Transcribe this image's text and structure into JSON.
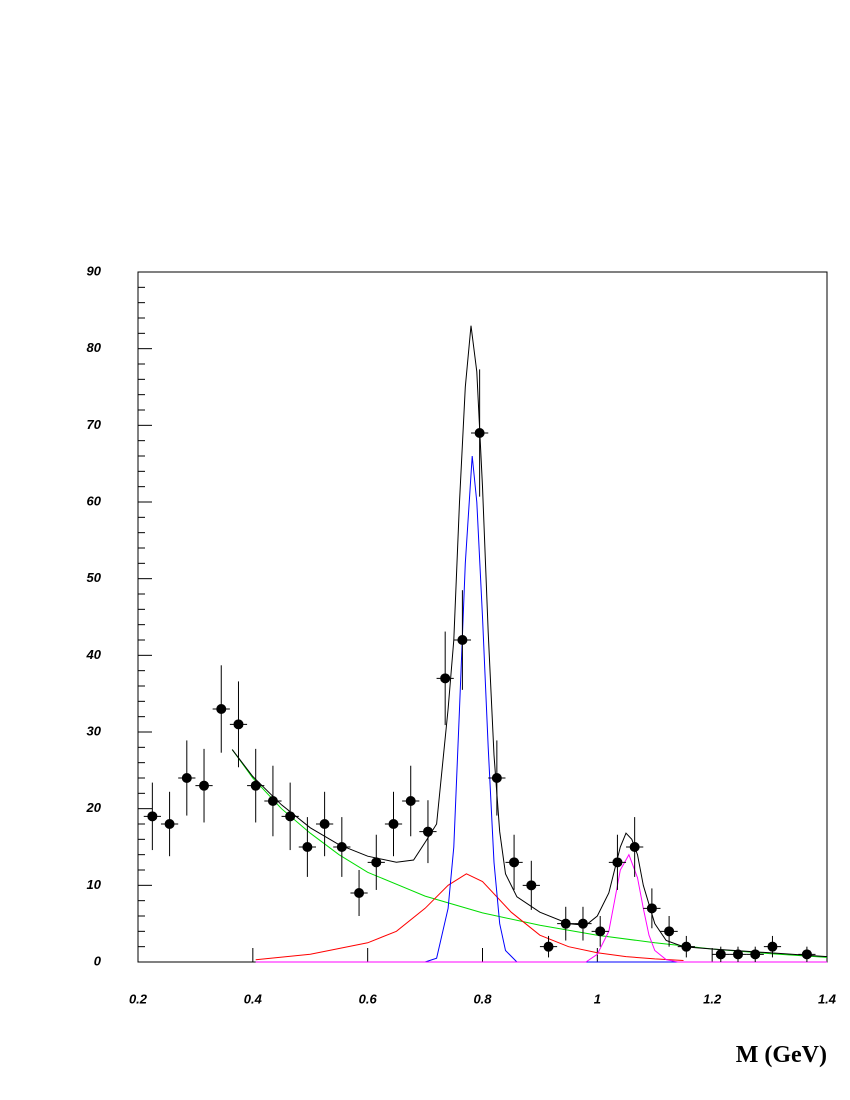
{
  "chart_data": {
    "type": "scatter",
    "x_label": "M (GeV)",
    "xlim": [
      0.2,
      1.4
    ],
    "xticks": [
      0.2,
      0.4,
      0.6,
      0.8,
      1,
      1.2,
      1.4
    ],
    "ylim": [
      0,
      90
    ],
    "yticks": [
      0,
      10,
      20,
      30,
      40,
      50,
      60,
      70,
      80,
      90
    ],
    "x_error": 0.015,
    "series": [
      {
        "color": "#000000",
        "x": [
          0.225,
          0.255,
          0.285,
          0.315,
          0.345,
          0.375,
          0.405,
          0.435,
          0.465,
          0.495,
          0.525,
          0.555,
          0.585,
          0.615,
          0.645,
          0.675,
          0.705,
          0.735,
          0.765,
          0.795,
          0.825,
          0.855,
          0.885,
          0.915,
          0.945,
          0.975,
          1.005,
          1.035,
          1.065,
          1.095,
          1.125,
          1.155,
          1.215,
          1.245,
          1.275,
          1.305,
          1.365
        ],
        "values": [
          19,
          18,
          24,
          23,
          33,
          31,
          23,
          21,
          19,
          15,
          18,
          15,
          9,
          13,
          18,
          21,
          17,
          37,
          42,
          69,
          24,
          13,
          10,
          2,
          5,
          5,
          4,
          13,
          15,
          7,
          4,
          2,
          1,
          1,
          1,
          2,
          1
        ],
        "errors": [
          4.4,
          4.2,
          4.9,
          4.8,
          5.7,
          5.6,
          4.8,
          4.6,
          4.4,
          3.9,
          4.2,
          3.9,
          3,
          3.6,
          4.2,
          4.6,
          4.1,
          6.1,
          6.5,
          8.3,
          4.9,
          3.6,
          3.2,
          1.4,
          2.2,
          2.2,
          2,
          3.6,
          3.9,
          2.6,
          2,
          1.4,
          1,
          1,
          1,
          1.4,
          1
        ]
      }
    ],
    "curves": [
      {
        "color": "#00dd00",
        "x": [
          0.364,
          0.4,
          0.45,
          0.5,
          0.55,
          0.6,
          0.7,
          0.8,
          0.9,
          1.0,
          1.1,
          1.2,
          1.3,
          1.4
        ],
        "values": [
          27.7,
          24,
          20,
          16.8,
          14,
          11.7,
          8.6,
          6.4,
          4.8,
          3.5,
          2.5,
          1.7,
          1.1,
          0.6
        ]
      },
      {
        "color": "#ff0000",
        "x": [
          0.405,
          0.5,
          0.6,
          0.65,
          0.7,
          0.74,
          0.772,
          0.8,
          0.85,
          0.9,
          0.95,
          1.0,
          1.05,
          1.1,
          1.15
        ],
        "values": [
          0.3,
          1,
          2.5,
          4,
          7,
          10,
          11.5,
          10.5,
          6.5,
          3.5,
          2,
          1.2,
          0.7,
          0.4,
          0.2
        ]
      },
      {
        "color": "#0000ff",
        "x": [
          0.405,
          0.7,
          0.72,
          0.74,
          0.75,
          0.76,
          0.77,
          0.782,
          0.79,
          0.8,
          0.81,
          0.82,
          0.83,
          0.84,
          0.86,
          1.15
        ],
        "values": [
          0,
          0,
          0.5,
          7,
          15,
          33,
          52,
          66,
          60,
          45,
          28,
          13,
          5,
          1.5,
          0,
          0
        ]
      },
      {
        "color": "#ff00ff",
        "x": [
          0.405,
          0.98,
          1.0,
          1.02,
          1.03,
          1.04,
          1.055,
          1.07,
          1.08,
          1.09,
          1.1,
          1.12,
          1.14,
          1.4
        ],
        "values": [
          0,
          0,
          1,
          4,
          8,
          12,
          14,
          11,
          7,
          3.5,
          1.5,
          0.3,
          0,
          0
        ]
      },
      {
        "color": "#000000",
        "x": [
          0.364,
          0.4,
          0.45,
          0.5,
          0.55,
          0.6,
          0.65,
          0.68,
          0.7,
          0.72,
          0.74,
          0.75,
          0.76,
          0.77,
          0.78,
          0.79,
          0.8,
          0.81,
          0.82,
          0.83,
          0.84,
          0.86,
          0.9,
          0.95,
          0.98,
          1.0,
          1.02,
          1.04,
          1.05,
          1.06,
          1.07,
          1.08,
          1.1,
          1.12,
          1.15,
          1.2,
          1.3,
          1.4
        ],
        "values": [
          27.7,
          24.2,
          20.5,
          17.5,
          15.3,
          13.8,
          13,
          13.3,
          15.6,
          18,
          33,
          42,
          60,
          75,
          83,
          77,
          62,
          43,
          27,
          17,
          11.5,
          8.5,
          6.5,
          5,
          4.8,
          6,
          9,
          15,
          16.8,
          16,
          14,
          10,
          5,
          2.8,
          2,
          1.7,
          1.2,
          0.7
        ]
      }
    ]
  }
}
